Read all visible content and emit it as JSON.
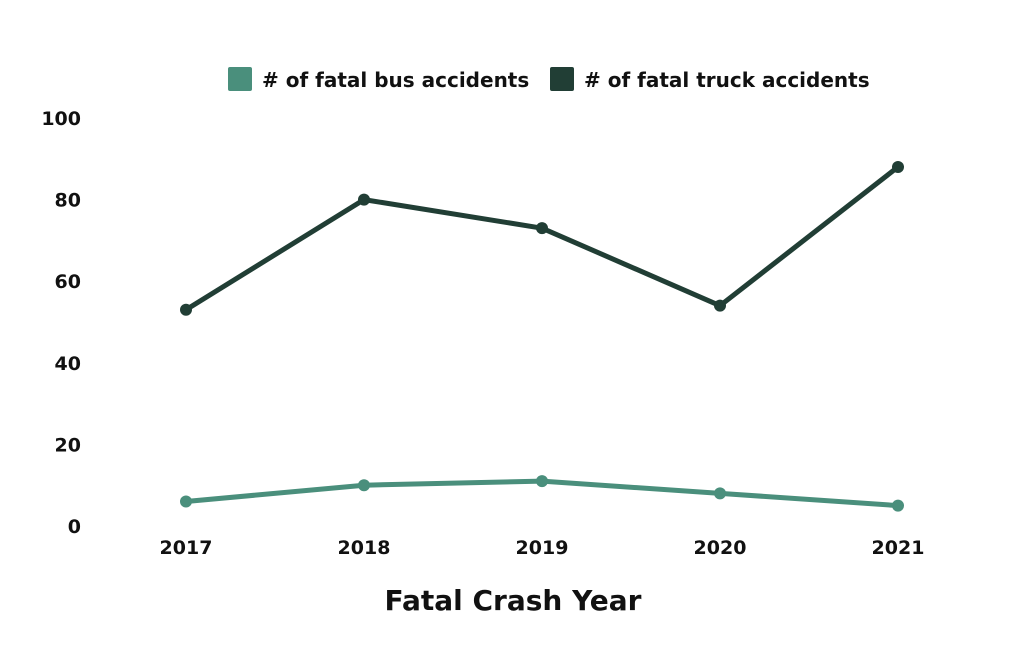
{
  "chart_data": {
    "type": "line",
    "title": "",
    "xlabel": "Fatal Crash Year",
    "ylabel": "",
    "categories": [
      "2017",
      "2018",
      "2019",
      "2020",
      "2021"
    ],
    "ylim": [
      0,
      100
    ],
    "yticks": [
      0,
      20,
      40,
      60,
      80,
      100
    ],
    "grid": false,
    "legend_position": "top",
    "series": [
      {
        "name": "# of fatal bus accidents",
        "color": "#4a8f7c",
        "values": [
          6,
          10,
          11,
          8,
          5
        ]
      },
      {
        "name": "# of fatal truck accidents",
        "color": "#213e35",
        "values": [
          53,
          80,
          73,
          54,
          88
        ]
      }
    ]
  }
}
